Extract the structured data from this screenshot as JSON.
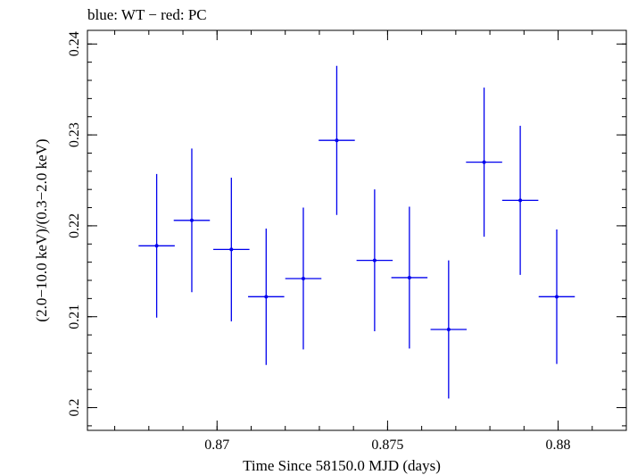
{
  "chart_data": {
    "type": "scatter",
    "title": "blue: WT − red: PC",
    "xlabel": "Time Since 58150.0 MJD (days)",
    "ylabel": "(2.0−10.0 keV)/(0.3−2.0 keV)",
    "xlim": [
      0.8662,
      0.882
    ],
    "ylim": [
      0.1975,
      0.2415
    ],
    "x_ticks": [
      {
        "value": 0.87,
        "label": "0.87"
      },
      {
        "value": 0.875,
        "label": "0.875"
      },
      {
        "value": 0.88,
        "label": "0.88"
      }
    ],
    "y_ticks": [
      {
        "value": 0.2,
        "label": "0.2"
      },
      {
        "value": 0.21,
        "label": "0.21"
      },
      {
        "value": 0.22,
        "label": "0.22"
      },
      {
        "value": 0.23,
        "label": "0.23"
      },
      {
        "value": 0.24,
        "label": "0.24"
      }
    ],
    "grid": false,
    "series": [
      {
        "color": "#0000ee",
        "points": [
          {
            "x": 0.86823,
            "xerr": 0.00053,
            "y": 0.2178,
            "yerr": 0.0079
          },
          {
            "x": 0.86926,
            "xerr": 0.00053,
            "y": 0.2206,
            "yerr": 0.0079
          },
          {
            "x": 0.87042,
            "xerr": 0.00053,
            "y": 0.2174,
            "yerr": 0.0079
          },
          {
            "x": 0.87144,
            "xerr": 0.00053,
            "y": 0.2122,
            "yerr": 0.0075
          },
          {
            "x": 0.87253,
            "xerr": 0.00053,
            "y": 0.2142,
            "yerr": 0.0078
          },
          {
            "x": 0.87351,
            "xerr": 0.00053,
            "y": 0.2294,
            "yerr": 0.0082
          },
          {
            "x": 0.87462,
            "xerr": 0.00053,
            "y": 0.2162,
            "yerr": 0.0078
          },
          {
            "x": 0.87564,
            "xerr": 0.00053,
            "y": 0.2143,
            "yerr": 0.0078
          },
          {
            "x": 0.87679,
            "xerr": 0.00053,
            "y": 0.2086,
            "yerr": 0.0076
          },
          {
            "x": 0.87783,
            "xerr": 0.00053,
            "y": 0.227,
            "yerr": 0.0082
          },
          {
            "x": 0.87889,
            "xerr": 0.00053,
            "y": 0.2228,
            "yerr": 0.0082
          },
          {
            "x": 0.87996,
            "xerr": 0.00053,
            "y": 0.2122,
            "yerr": 0.0074
          }
        ]
      }
    ]
  }
}
